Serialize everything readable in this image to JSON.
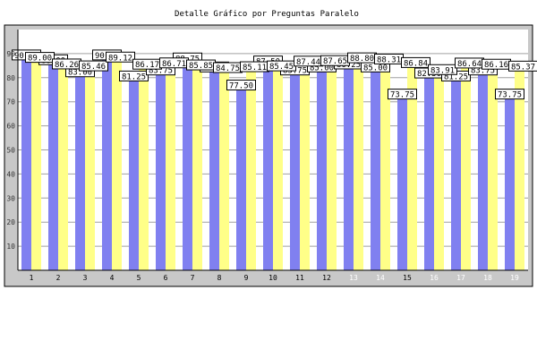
{
  "chart_data": {
    "type": "bar",
    "title": "Detalle Gráfico por Preguntas Paralelo",
    "xlabel": "",
    "ylabel": "",
    "ylim": [
      0,
      100
    ],
    "yticks": [
      10,
      20,
      30,
      40,
      50,
      60,
      70,
      80,
      90
    ],
    "grid": true,
    "legend": "none",
    "categories": [
      "1",
      "2",
      "3",
      "4",
      "5",
      "6",
      "7",
      "8",
      "9",
      "10",
      "11",
      "12",
      "13",
      "14",
      "15",
      "16",
      "17",
      "18",
      "19"
    ],
    "series": [
      {
        "color": "#8080f0",
        "values": [
          90.0,
          88.0,
          83.0,
          90.0,
          81.25,
          83.75,
          88.75,
          85.0,
          77.5,
          87.5,
          83.75,
          85.0,
          86.25,
          85.0,
          73.75,
          82.5,
          81.25,
          83.75,
          73.75
        ]
      },
      {
        "color": "#ffff88",
        "values": [
          89.0,
          86.26,
          85.46,
          89.12,
          86.17,
          86.71,
          85.85,
          84.75,
          85.11,
          85.45,
          87.44,
          87.65,
          88.8,
          88.31,
          86.84,
          83.91,
          86.64,
          86.16,
          85.37
        ]
      }
    ],
    "x_tick_colors": [
      "#000000",
      "#000000",
      "#000000",
      "#000000",
      "#000000",
      "#000000",
      "#000000",
      "#000000",
      "#000000",
      "#000000",
      "#000000",
      "#000000",
      "#ffffff",
      "#ffffff",
      "#000000",
      "#ffffff",
      "#ffffff",
      "#ffffff",
      "#ffffff"
    ]
  }
}
